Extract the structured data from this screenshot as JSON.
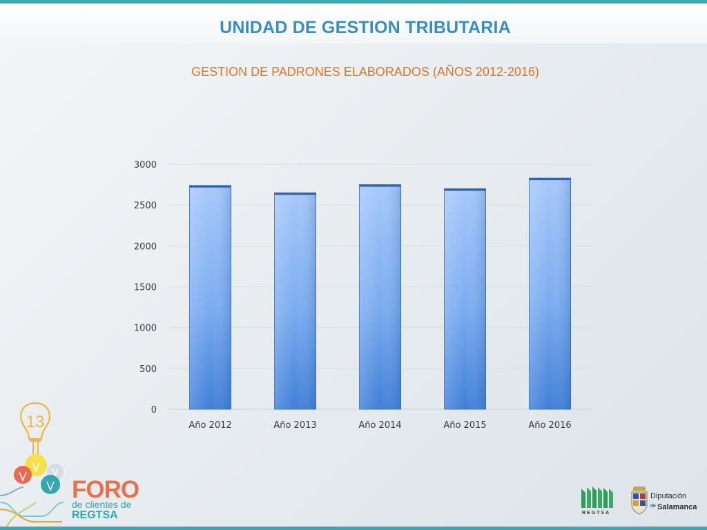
{
  "header": {
    "title": "UNIDAD DE GESTION TRIBUTARIA"
  },
  "chart_data": {
    "type": "bar",
    "title": "GESTION DE PADRONES ELABORADOS (AÑOS 2012-2016)",
    "categories": [
      "Año 2012",
      "Año 2013",
      "Año 2014",
      "Año 2015",
      "Año 2016"
    ],
    "values": [
      2740,
      2650,
      2750,
      2700,
      2830
    ],
    "ylim": [
      0,
      3000
    ],
    "yticks": [
      0,
      500,
      1000,
      1500,
      2000,
      2500,
      3000
    ],
    "grid": true,
    "legend": "none",
    "bar_color": "#5b96e0"
  },
  "logos": {
    "foro": {
      "number": "13",
      "big": "FORO",
      "mid": "de clientes de",
      "small": "REGTSA"
    },
    "regtsa": {
      "text": "REGTSA"
    },
    "diputacion": {
      "line1": "Diputación",
      "de": "de",
      "line2": "Salamanca"
    }
  }
}
